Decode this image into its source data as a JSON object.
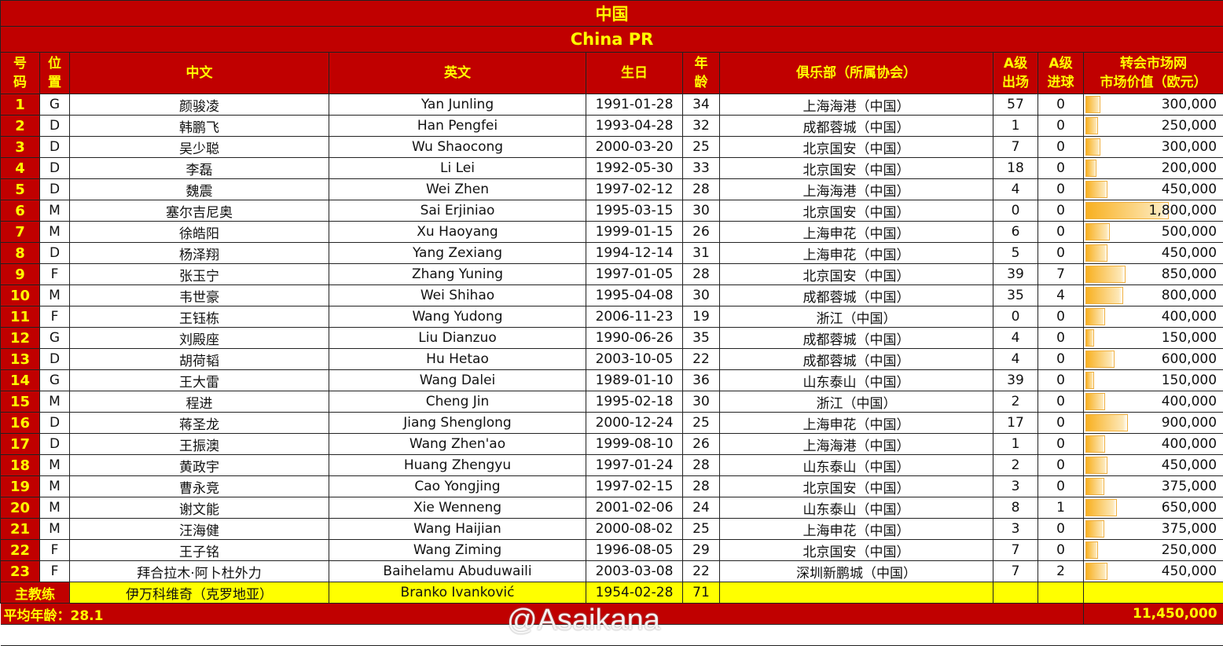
{
  "title": "中国",
  "subtitle": "China PR",
  "headers": {
    "num": "号\n码",
    "pos": "位\n置",
    "cn": "中文",
    "en": "英文",
    "dob": "生日",
    "age": "年\n龄",
    "club": "俱乐部（所属协会）",
    "caps": "A级\n出场",
    "goals": "A级\n进球",
    "mv": "转会市场网\n市场价值（欧元）"
  },
  "players": [
    {
      "num": "1",
      "pos": "G",
      "cn": "颜骏凌",
      "en": "Yan Junling",
      "dob": "1991-01-28",
      "age": "34",
      "club": "上海海港（中国）",
      "caps": "57",
      "goals": "0",
      "mv": "300,000",
      "mv_value": 300000
    },
    {
      "num": "2",
      "pos": "D",
      "cn": "韩鹏飞",
      "en": "Han Pengfei",
      "dob": "1993-04-28",
      "age": "32",
      "club": "成都蓉城（中国）",
      "caps": "1",
      "goals": "0",
      "mv": "250,000",
      "mv_value": 250000
    },
    {
      "num": "3",
      "pos": "D",
      "cn": "吴少聪",
      "en": "Wu Shaocong",
      "dob": "2000-03-20",
      "age": "25",
      "club": "北京国安（中国）",
      "caps": "7",
      "goals": "0",
      "mv": "300,000",
      "mv_value": 300000
    },
    {
      "num": "4",
      "pos": "D",
      "cn": "李磊",
      "en": "Li Lei",
      "dob": "1992-05-30",
      "age": "33",
      "club": "北京国安（中国）",
      "caps": "18",
      "goals": "0",
      "mv": "200,000",
      "mv_value": 200000
    },
    {
      "num": "5",
      "pos": "D",
      "cn": "魏震",
      "en": "Wei Zhen",
      "dob": "1997-02-12",
      "age": "28",
      "club": "上海海港（中国）",
      "caps": "4",
      "goals": "0",
      "mv": "450,000",
      "mv_value": 450000
    },
    {
      "num": "6",
      "pos": "M",
      "cn": "塞尔吉尼奥",
      "en": "Sai Erjiniao",
      "dob": "1995-03-15",
      "age": "30",
      "club": "北京国安（中国）",
      "caps": "0",
      "goals": "0",
      "mv": "1,800,000",
      "mv_value": 1800000
    },
    {
      "num": "7",
      "pos": "M",
      "cn": "徐皓阳",
      "en": "Xu Haoyang",
      "dob": "1999-01-15",
      "age": "26",
      "club": "上海申花（中国）",
      "caps": "6",
      "goals": "0",
      "mv": "500,000",
      "mv_value": 500000
    },
    {
      "num": "8",
      "pos": "D",
      "cn": "杨泽翔",
      "en": "Yang Zexiang",
      "dob": "1994-12-14",
      "age": "31",
      "club": "上海申花（中国）",
      "caps": "5",
      "goals": "0",
      "mv": "450,000",
      "mv_value": 450000
    },
    {
      "num": "9",
      "pos": "F",
      "cn": "张玉宁",
      "en": "Zhang Yuning",
      "dob": "1997-01-05",
      "age": "28",
      "club": "北京国安（中国）",
      "caps": "39",
      "goals": "7",
      "mv": "850,000",
      "mv_value": 850000
    },
    {
      "num": "10",
      "pos": "M",
      "cn": "韦世豪",
      "en": "Wei Shihao",
      "dob": "1995-04-08",
      "age": "30",
      "club": "成都蓉城（中国）",
      "caps": "35",
      "goals": "4",
      "mv": "800,000",
      "mv_value": 800000
    },
    {
      "num": "11",
      "pos": "F",
      "cn": "王钰栋",
      "en": "Wang Yudong",
      "dob": "2006-11-23",
      "age": "19",
      "club": "浙江（中国）",
      "caps": "0",
      "goals": "0",
      "mv": "400,000",
      "mv_value": 400000
    },
    {
      "num": "12",
      "pos": "G",
      "cn": "刘殿座",
      "en": "Liu Dianzuo",
      "dob": "1990-06-26",
      "age": "35",
      "club": "成都蓉城（中国）",
      "caps": "4",
      "goals": "0",
      "mv": "150,000",
      "mv_value": 150000
    },
    {
      "num": "13",
      "pos": "D",
      "cn": "胡荷韬",
      "en": "Hu Hetao",
      "dob": "2003-10-05",
      "age": "22",
      "club": "成都蓉城（中国）",
      "caps": "4",
      "goals": "0",
      "mv": "600,000",
      "mv_value": 600000
    },
    {
      "num": "14",
      "pos": "G",
      "cn": "王大雷",
      "en": "Wang Dalei",
      "dob": "1989-01-10",
      "age": "36",
      "club": "山东泰山（中国）",
      "caps": "39",
      "goals": "0",
      "mv": "150,000",
      "mv_value": 150000
    },
    {
      "num": "15",
      "pos": "M",
      "cn": "程进",
      "en": "Cheng Jin",
      "dob": "1995-02-18",
      "age": "30",
      "club": "浙江（中国）",
      "caps": "2",
      "goals": "0",
      "mv": "400,000",
      "mv_value": 400000
    },
    {
      "num": "16",
      "pos": "D",
      "cn": "蒋圣龙",
      "en": "Jiang Shenglong",
      "dob": "2000-12-24",
      "age": "25",
      "club": "上海申花（中国）",
      "caps": "17",
      "goals": "0",
      "mv": "900,000",
      "mv_value": 900000
    },
    {
      "num": "17",
      "pos": "D",
      "cn": "王振澳",
      "en": "Wang Zhen'ao",
      "dob": "1999-08-10",
      "age": "26",
      "club": "上海海港（中国）",
      "caps": "1",
      "goals": "0",
      "mv": "400,000",
      "mv_value": 400000
    },
    {
      "num": "18",
      "pos": "M",
      "cn": "黄政宇",
      "en": "Huang Zhengyu",
      "dob": "1997-01-24",
      "age": "28",
      "club": "山东泰山（中国）",
      "caps": "2",
      "goals": "0",
      "mv": "450,000",
      "mv_value": 450000
    },
    {
      "num": "19",
      "pos": "M",
      "cn": "曹永竞",
      "en": "Cao Yongjing",
      "dob": "1997-02-15",
      "age": "28",
      "club": "北京国安（中国）",
      "caps": "3",
      "goals": "0",
      "mv": "375,000",
      "mv_value": 375000
    },
    {
      "num": "20",
      "pos": "M",
      "cn": "谢文能",
      "en": "Xie Wenneng",
      "dob": "2001-02-06",
      "age": "24",
      "club": "山东泰山（中国）",
      "caps": "8",
      "goals": "1",
      "mv": "650,000",
      "mv_value": 650000
    },
    {
      "num": "21",
      "pos": "M",
      "cn": "汪海健",
      "en": "Wang Haijian",
      "dob": "2000-08-02",
      "age": "25",
      "club": "上海申花（中国）",
      "caps": "3",
      "goals": "0",
      "mv": "375,000",
      "mv_value": 375000
    },
    {
      "num": "22",
      "pos": "F",
      "cn": "王子铭",
      "en": "Wang Ziming",
      "dob": "1996-08-05",
      "age": "29",
      "club": "北京国安（中国）",
      "caps": "7",
      "goals": "0",
      "mv": "250,000",
      "mv_value": 250000
    },
    {
      "num": "23",
      "pos": "F",
      "cn": "拜合拉木·阿卜杜外力",
      "en": "Baihelamu Abuduwaili",
      "dob": "2003-03-08",
      "age": "22",
      "club": "深圳新鹏城（中国）",
      "caps": "7",
      "goals": "2",
      "mv": "450,000",
      "mv_value": 450000
    }
  ],
  "coach": {
    "label": "主教练",
    "cn": "伊万科维奇（克罗地亚）",
    "en": "Branko Ivanković",
    "dob": "1954-02-28",
    "age": "71"
  },
  "footer": {
    "avg_age": "平均年龄：28.1",
    "total_mv": "11,450,000"
  },
  "watermark": "@Asaikana",
  "colors": {
    "header_red": "#c00000",
    "header_text": "#ffff00",
    "coach_bg": "#ffff00",
    "bar": "#f8b020"
  }
}
